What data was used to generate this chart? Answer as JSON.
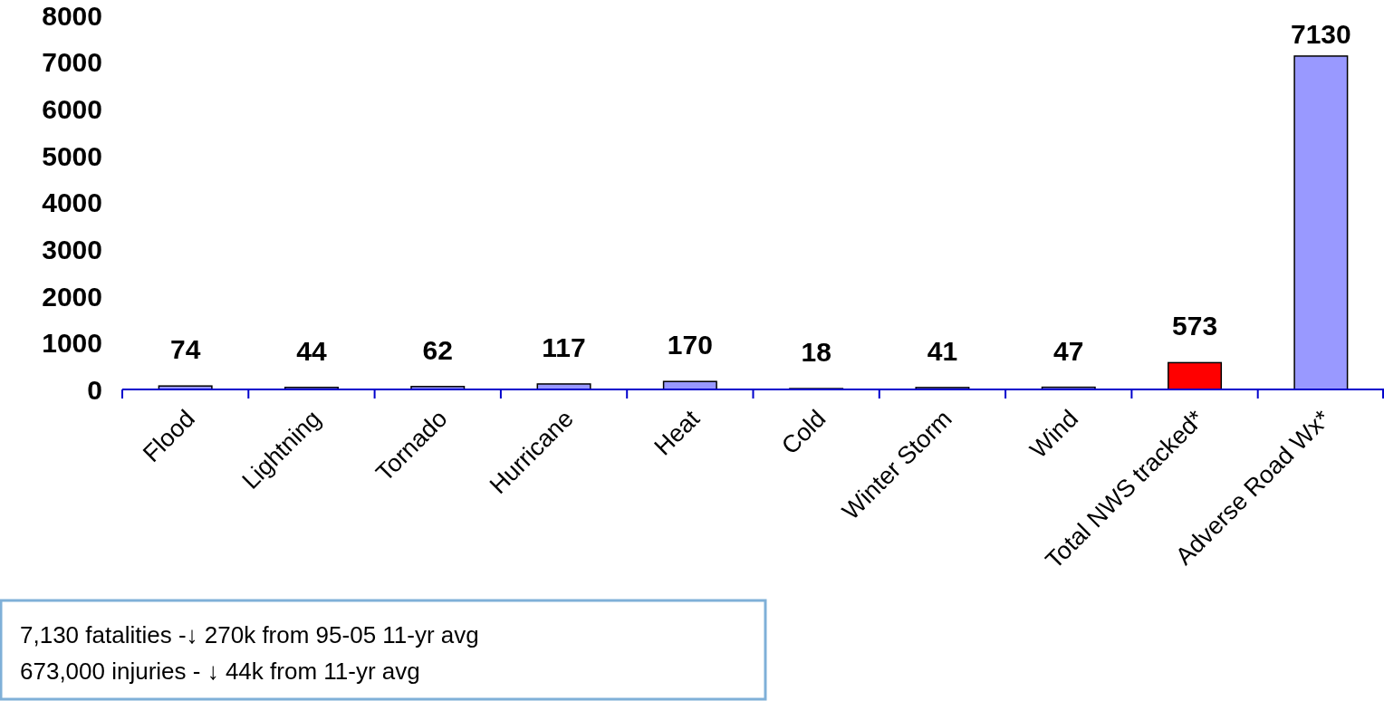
{
  "chart_data": {
    "type": "bar",
    "categories": [
      "Flood",
      "Lightning",
      "Tornado",
      "Hurricane",
      "Heat",
      "Cold",
      "Winter Storm",
      "Wind",
      "Total NWS tracked*",
      "Adverse Road Wx*"
    ],
    "values": [
      74,
      44,
      62,
      117,
      170,
      18,
      41,
      47,
      573,
      7130
    ],
    "colors": [
      "#9999ff",
      "#9999ff",
      "#9999ff",
      "#9999ff",
      "#9999ff",
      "#9999ff",
      "#9999ff",
      "#9999ff",
      "#ff0000",
      "#9999ff"
    ],
    "ylim": [
      0,
      8000
    ],
    "yticks": [
      0,
      1000,
      2000,
      3000,
      4000,
      5000,
      6000,
      7000,
      8000
    ],
    "grid": false,
    "data_labels": true,
    "annotations": [
      "7,130 fatalities -↓ 270k from 95-05 11-yr avg",
      "673,000 injuries - ↓ 44k from 11-yr avg"
    ]
  }
}
